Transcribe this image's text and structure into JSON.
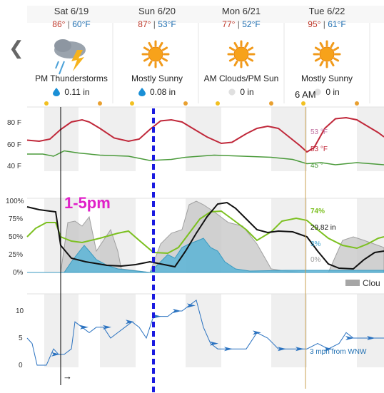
{
  "nav": {
    "prev_icon": "chevron-left-icon"
  },
  "days": [
    {
      "date": "Sat 6/19",
      "high": "86°",
      "low": "60°F",
      "condition": "PM Thunderstorms",
      "icon": "thunderstorm-icon",
      "precip": "0.11 in",
      "precip_icon": "blue-drop-icon"
    },
    {
      "date": "Sun 6/20",
      "high": "87°",
      "low": "53°F",
      "condition": "Mostly Sunny",
      "icon": "sun-icon",
      "precip": "0.08 in",
      "precip_icon": "blue-drop-icon"
    },
    {
      "date": "Mon 6/21",
      "high": "77°",
      "low": "52°F",
      "condition": "AM Clouds/PM Sun",
      "icon": "sun-icon",
      "precip": "0 in",
      "precip_icon": "gray-drop-icon"
    },
    {
      "date": "Tue 6/22",
      "high": "95°",
      "low": "61°F",
      "condition": "Mostly Sunny",
      "icon": "sun-icon",
      "precip": "0 in",
      "precip_icon": "gray-drop-icon"
    }
  ],
  "temp_chart": {
    "y_ticks": [
      "80 F",
      "60 F",
      "40 F"
    ],
    "readouts": {
      "feels": "53 °F",
      "temp": "53 °F",
      "dew": "45 °"
    },
    "colors": {
      "temp": "#c0283a",
      "dew": "#4a9a3a",
      "feels": "#c070a0"
    }
  },
  "humidity_chart": {
    "y_ticks": [
      "100%",
      "75%",
      "50%",
      "25%",
      "0%"
    ],
    "readouts": {
      "humidity": "74%",
      "pressure": "29.82 in",
      "precip_chance": "3%",
      "cloud": "0%"
    },
    "legend": "Clou",
    "colors": {
      "humidity": "#7cc020",
      "pressure": "#111111",
      "precip": "#5ab4d6",
      "cloud": "#c8c8c8"
    }
  },
  "wind_chart": {
    "y_ticks": [
      "10",
      "5",
      "0"
    ],
    "readout": "3 mph from WNW",
    "color": "#2a72c0"
  },
  "annotations": {
    "time_range": "1-5pm",
    "cursor_time": "6 AM",
    "arrow": "→"
  }
}
